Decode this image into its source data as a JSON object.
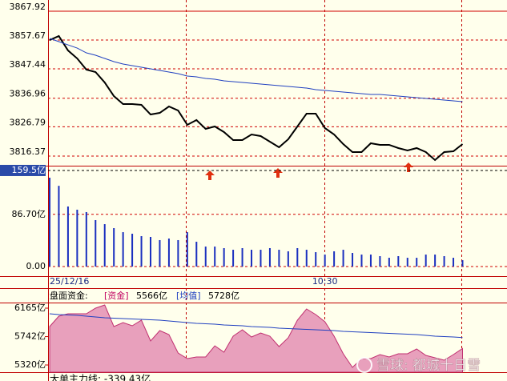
{
  "x_axis": {
    "categories": [
      "25/12/16",
      null,
      null,
      null,
      null,
      null,
      null,
      null,
      null,
      null,
      null,
      null,
      null,
      null,
      null,
      null,
      null,
      null,
      null,
      null,
      null,
      null,
      null,
      null,
      null,
      null,
      null,
      null,
      null,
      null,
      "10:30",
      null,
      null,
      null,
      null,
      null,
      null,
      null,
      null,
      null,
      null,
      null,
      null,
      null,
      null,
      null
    ]
  },
  "chart_data": [
    {
      "type": "line",
      "ylim": [
        3812.95,
        3870.5
      ],
      "yticks": [
        3867.92,
        3857.67,
        3847.44,
        3836.96,
        3826.79,
        3816.37
      ],
      "grid": true,
      "series": [
        {
          "color": "#000000",
          "values": [
            3857.67,
            3859.09,
            3853.96,
            3851.12,
            3847.13,
            3846.28,
            3842.57,
            3837.73,
            3834.88,
            3834.88,
            3834.6,
            3831.18,
            3831.75,
            3834.03,
            3832.6,
            3827.48,
            3829.19,
            3826.05,
            3826.91,
            3824.92,
            3822.07,
            3822.07,
            3824.06,
            3823.49,
            3821.5,
            3819.5,
            3822.35,
            3826.91,
            3831.47,
            3831.47,
            3826.34,
            3824.06,
            3820.64,
            3817.8,
            3817.8,
            3820.93,
            3820.36,
            3820.36,
            3819.22,
            3818.36,
            3819.22,
            3817.8,
            3814.95,
            3817.8,
            3818.08,
            3820.64
          ]
        },
        {
          "color": "#2040c0",
          "values": [
            3858.24,
            3857.1,
            3855.96,
            3854.82,
            3853.11,
            3852.26,
            3851.12,
            3849.98,
            3849.13,
            3848.56,
            3847.99,
            3847.42,
            3846.85,
            3846.28,
            3845.71,
            3844.85,
            3844.57,
            3844.0,
            3843.71,
            3843.14,
            3842.86,
            3842.57,
            3842.29,
            3842.0,
            3841.72,
            3841.43,
            3841.15,
            3840.86,
            3840.58,
            3840.01,
            3839.72,
            3839.44,
            3839.15,
            3838.87,
            3838.58,
            3838.3,
            3838.3,
            3838.01,
            3837.73,
            3837.45,
            3837.16,
            3836.88,
            3836.59,
            3836.31,
            3836.02,
            3835.74
          ]
        }
      ]
    },
    {
      "type": "bar",
      "ylim": [
        -15.9,
        166.1
      ],
      "yticks": [
        {
          "value": 159.5,
          "label": "159.5亿"
        },
        {
          "value": 86.7,
          "label": "86.70亿"
        },
        {
          "value": 0,
          "label": "0.00"
        }
      ],
      "grid": true,
      "color": "#1a2fbf",
      "values": [
        147.5,
        134,
        99.7,
        94.4,
        90.4,
        77.1,
        70.4,
        63.8,
        57.1,
        54.5,
        50.5,
        49.2,
        43.9,
        46.5,
        43.9,
        57.1,
        41.2,
        33.2,
        33.2,
        30.6,
        27.9,
        30.6,
        27.9,
        27.9,
        30.6,
        27.9,
        25.3,
        30.6,
        27.9,
        23.9,
        19.9,
        25.3,
        27.9,
        22.6,
        19.9,
        19.9,
        17.3,
        14.6,
        17.3,
        14.6,
        14.6,
        19.9,
        19.9,
        17.3,
        14.6,
        10.6
      ]
    },
    {
      "type": "area",
      "title": "盘面资金:",
      "ylim": [
        5213,
        6248.3
      ],
      "yticks": [
        {
          "value": 6165,
          "label": "6165亿"
        },
        {
          "value": 5742,
          "label": "5742亿"
        },
        {
          "value": 5320,
          "label": "5320亿"
        }
      ],
      "series": [
        {
          "name": "[资金]",
          "value_label": "5566亿",
          "color": "#e8a0bc",
          "values": [
            5891.3,
            6046,
            6081.7,
            6081.7,
            6081.7,
            6165,
            6212.6,
            5891.3,
            5950.8,
            5903.2,
            5986.5,
            5677.1,
            5831.8,
            5772.3,
            5498.6,
            5415.3,
            5439.1,
            5439.1,
            5605.7,
            5510.5,
            5748.5,
            5843.7,
            5736.6,
            5796.1,
            5748.5,
            5593.8,
            5724.7,
            5986.5,
            6153.1,
            6069.8,
            5962.7,
            5748.5,
            5486.7,
            5284.4,
            5415.3,
            5415.3,
            5474.8,
            5439.1,
            5486.7,
            5486.7,
            5558.1,
            5462.9,
            5427.2,
            5391.5,
            5474.8,
            5566
          ]
        },
        {
          "name": "[均值]",
          "value_label": "5728亿",
          "color": "#2040c0",
          "values": [
            6081.7,
            6069.8,
            6063.9,
            6057.9,
            6046.0,
            6034.1,
            6022.2,
            6016.3,
            6010.3,
            6004.4,
            5998.4,
            5992.5,
            5986.5,
            5974.6,
            5962.7,
            5950.8,
            5938.9,
            5933.0,
            5927.0,
            5915.1,
            5909.2,
            5903.2,
            5891.3,
            5885.4,
            5879.4,
            5867.5,
            5861.6,
            5855.6,
            5849.7,
            5843.7,
            5837.8,
            5831.8,
            5819.9,
            5814.0,
            5808.0,
            5802.1,
            5796.1,
            5790.2,
            5784.2,
            5778.3,
            5772.3,
            5760.4,
            5748.5,
            5742.6,
            5736.6,
            5728
          ]
        }
      ]
    }
  ],
  "footer_text": "大单主力线: -339.43亿",
  "watermark": "雪球: 都城十日雪"
}
